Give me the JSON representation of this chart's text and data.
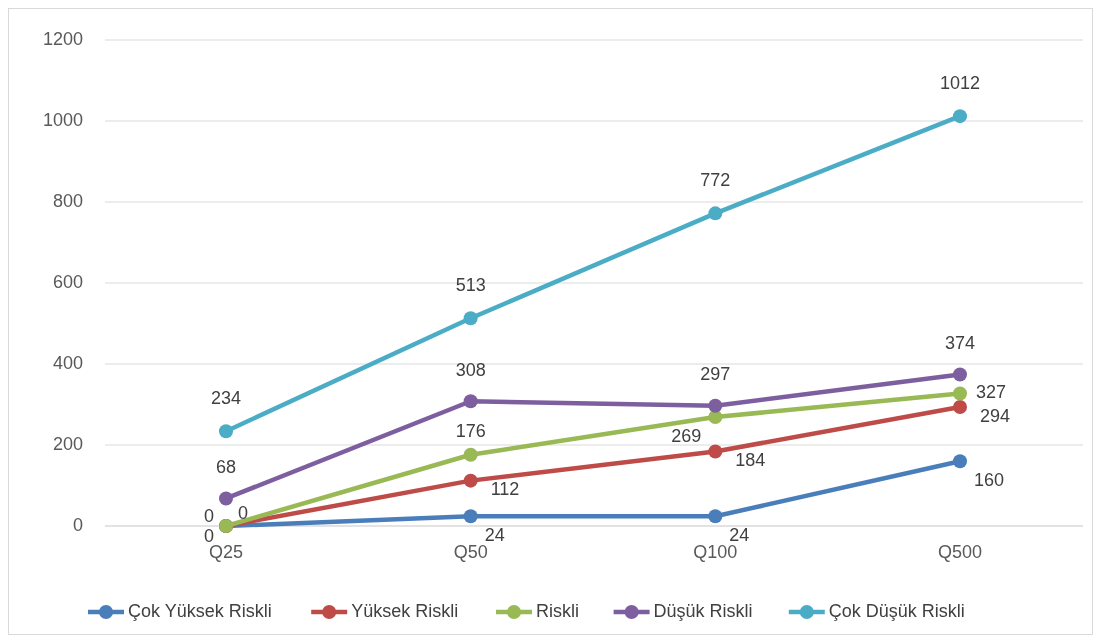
{
  "chart_data": {
    "type": "line",
    "categories": [
      "Q25",
      "Q50",
      "Q100",
      "Q500"
    ],
    "series": [
      {
        "name": "Çok Yüksek Riskli",
        "color": "#4a7ebb",
        "values": [
          0,
          24,
          24,
          160
        ]
      },
      {
        "name": "Yüksek Riskli",
        "color": "#be4b48",
        "values": [
          0,
          112,
          184,
          294
        ]
      },
      {
        "name": "Riskli",
        "color": "#98b954",
        "values": [
          0,
          176,
          269,
          327
        ]
      },
      {
        "name": "Düşük Riskli",
        "color": "#7d5fa0",
        "values": [
          68,
          308,
          297,
          374
        ]
      },
      {
        "name": "Çok Düşük Riskli",
        "color": "#4bacc6",
        "values": [
          234,
          513,
          772,
          1012
        ]
      }
    ],
    "ylim": [
      0,
      1200
    ],
    "yticks": [
      0,
      200,
      400,
      600,
      800,
      1000,
      1200
    ],
    "grid": "y",
    "legend": "bottom",
    "marker": "circle",
    "line_style": "solid",
    "data_labels": true
  }
}
